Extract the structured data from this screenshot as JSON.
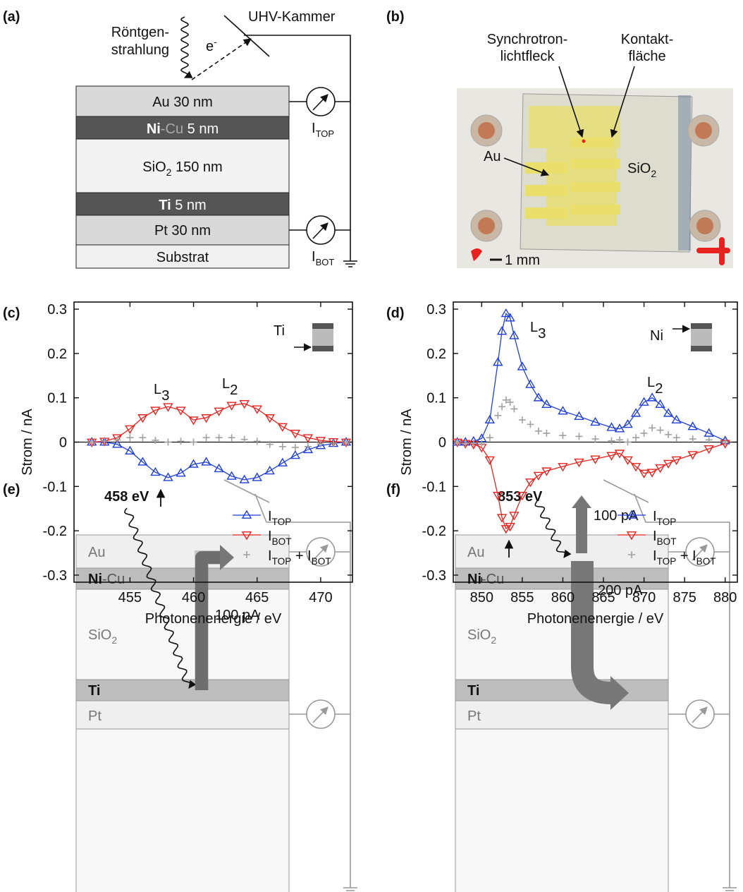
{
  "panel_labels": [
    "(a)",
    "(b)",
    "(c)",
    "(d)",
    "(e)",
    "(f)"
  ],
  "panel_a": {
    "xray": [
      "Röntgen-",
      "strahlung"
    ],
    "electron": [
      "e",
      "-"
    ],
    "chamber": "UHV-Kammer",
    "layers": {
      "au": "Au 30 nm",
      "nicu": [
        "Ni",
        "-Cu",
        " 5 nm"
      ],
      "sio2": [
        "SiO",
        "2",
        " 150 nm"
      ],
      "ti": [
        "Ti",
        " 5 nm"
      ],
      "pt": "Pt 30 nm",
      "substrate": "Substrat"
    },
    "meters": [
      [
        "I",
        "TOP"
      ],
      [
        "I",
        "BOT"
      ]
    ]
  },
  "panel_b": {
    "spot": [
      "Synchrotron-",
      "lichtfleck"
    ],
    "contact": [
      "Kontakt-",
      "fläche"
    ],
    "au": "Au",
    "sio2": [
      "SiO",
      "2"
    ],
    "scale": "1 mm"
  },
  "panel_e": {
    "energy": "458 eV",
    "layers": {
      "au": "Au",
      "nicu": [
        "Ni",
        "-Cu"
      ],
      "sio2": [
        "SiO",
        "2"
      ],
      "ti": "Ti",
      "pt": "Pt"
    },
    "current": "100 pA"
  },
  "panel_f": {
    "energy": "853 eV",
    "layers": {
      "au": "Au",
      "nicu": [
        "Ni",
        "-Cu"
      ],
      "sio2": [
        "SiO",
        "2"
      ],
      "ti": "Ti",
      "pt": "Pt"
    },
    "current_up": "100 pA",
    "current_down": "200 pA"
  },
  "chart_data": [
    {
      "type": "line",
      "xlabel": "Photonenenergie / eV",
      "ylabel": "Strom / nA",
      "xlim": [
        450.6,
        472.5
      ],
      "ylim": [
        -0.316,
        0.316
      ],
      "xticks": [
        455,
        460,
        465,
        470
      ],
      "yticks": [
        0.3,
        0.2,
        0.1,
        0,
        -0.1,
        -0.2,
        -0.3
      ],
      "inset_label": "Ti",
      "peak_labels": [
        [
          "L",
          "3"
        ],
        [
          "L",
          "2"
        ]
      ],
      "legend": "lower right",
      "x": [
        452,
        453,
        454,
        455,
        456,
        457,
        458,
        459,
        460,
        461,
        462,
        463,
        464,
        465,
        466,
        467,
        468,
        469,
        470,
        471,
        472
      ],
      "series": [
        {
          "name": [
            "I",
            "TOP"
          ],
          "color": "#1f3fd6",
          "marker": "triangle-up",
          "values": [
            0,
            0,
            -0.005,
            -0.02,
            -0.045,
            -0.068,
            -0.08,
            -0.07,
            -0.05,
            -0.045,
            -0.06,
            -0.077,
            -0.085,
            -0.08,
            -0.065,
            -0.047,
            -0.03,
            -0.017,
            -0.008,
            -0.003,
            0
          ]
        },
        {
          "name": [
            "I",
            "BOT"
          ],
          "color": "#e8231f",
          "marker": "triangle-down",
          "values": [
            0,
            0.002,
            0.01,
            0.03,
            0.055,
            0.072,
            0.08,
            0.072,
            0.05,
            0.055,
            0.07,
            0.083,
            0.087,
            0.075,
            0.055,
            0.035,
            0.02,
            0.01,
            0.004,
            0.001,
            0
          ]
        },
        {
          "name": [
            "I",
            "TOP",
            " + I",
            "BOT"
          ],
          "color": "#a0a0a0",
          "marker": "plus",
          "values": [
            0,
            0.002,
            0.005,
            0.01,
            0.01,
            0.004,
            0,
            0.002,
            0,
            0.01,
            0.01,
            0.01,
            0.006,
            0.002,
            -0.005,
            -0.01,
            -0.012,
            -0.01,
            -0.004,
            -0.002,
            0
          ]
        }
      ]
    },
    {
      "type": "line",
      "xlabel": "Photonenenergie / eV",
      "ylabel": "Strom / nA",
      "xlim": [
        846.5,
        881.5
      ],
      "ylim": [
        -0.316,
        0.316
      ],
      "xticks": [
        850,
        855,
        860,
        865,
        870,
        875,
        880
      ],
      "yticks": [
        0.3,
        0.2,
        0.1,
        0,
        -0.1,
        -0.2,
        -0.3
      ],
      "inset_label": "Ni",
      "peak_labels": [
        [
          "L",
          "3"
        ],
        [
          "L",
          "2"
        ]
      ],
      "legend": "lower right",
      "x": [
        847,
        848,
        849,
        850,
        851,
        852,
        852.5,
        853,
        853.5,
        854,
        855,
        856,
        857,
        858,
        860,
        862,
        864,
        866,
        867,
        868,
        869,
        870,
        871,
        872,
        873,
        874,
        876,
        878,
        880
      ],
      "series": [
        {
          "name": [
            "I",
            "TOP"
          ],
          "color": "#1f3fd6",
          "marker": "triangle-up",
          "values": [
            0,
            0,
            0.002,
            0.008,
            0.05,
            0.18,
            0.25,
            0.29,
            0.28,
            0.24,
            0.17,
            0.13,
            0.1,
            0.085,
            0.07,
            0.058,
            0.045,
            0.033,
            0.03,
            0.04,
            0.065,
            0.09,
            0.1,
            0.085,
            0.065,
            0.05,
            0.035,
            0.02,
            0.003
          ]
        },
        {
          "name": [
            "I",
            "BOT"
          ],
          "color": "#e8231f",
          "marker": "triangle-down",
          "values": [
            0,
            -0.003,
            -0.005,
            -0.012,
            -0.04,
            -0.12,
            -0.17,
            -0.195,
            -0.19,
            -0.165,
            -0.12,
            -0.09,
            -0.075,
            -0.065,
            -0.055,
            -0.045,
            -0.038,
            -0.03,
            -0.025,
            -0.04,
            -0.055,
            -0.07,
            -0.068,
            -0.058,
            -0.048,
            -0.04,
            -0.028,
            -0.015,
            -0.003
          ]
        },
        {
          "name": [
            "I",
            "TOP",
            " + I",
            "BOT"
          ],
          "color": "#a0a0a0",
          "marker": "plus",
          "values": [
            0,
            -0.003,
            -0.003,
            -0.004,
            0.01,
            0.06,
            0.08,
            0.095,
            0.09,
            0.075,
            0.05,
            0.04,
            0.025,
            0.02,
            0.015,
            0.013,
            0.007,
            0.003,
            0.005,
            0,
            0.01,
            0.02,
            0.032,
            0.027,
            0.017,
            0.01,
            0.007,
            0.005,
            0
          ]
        }
      ]
    }
  ]
}
